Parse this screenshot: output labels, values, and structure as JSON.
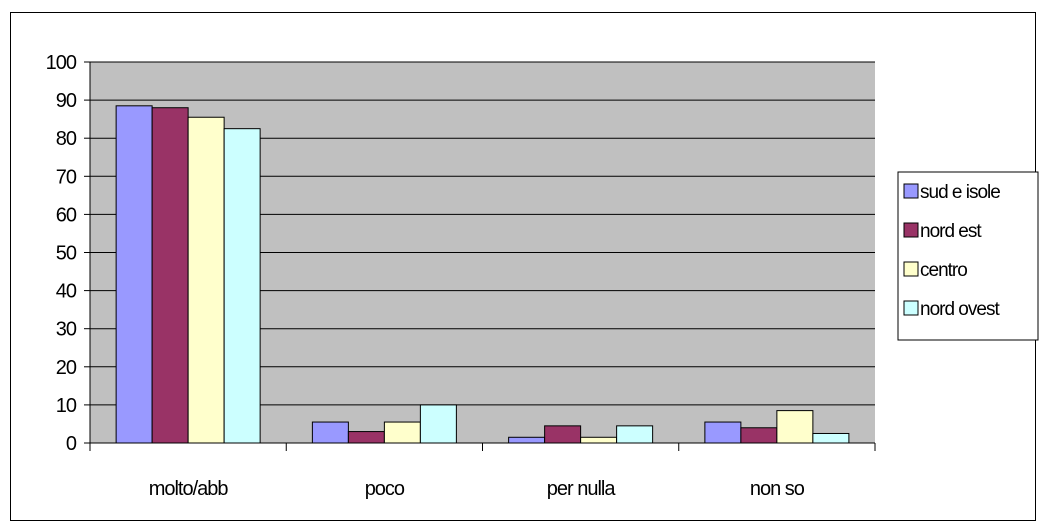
{
  "chart_data": {
    "type": "bar",
    "title": "",
    "xlabel": "",
    "ylabel": "",
    "ylim": [
      0,
      100
    ],
    "ytick_step": 10,
    "grid": true,
    "legend_placement": "right",
    "categories": [
      "molto/abb",
      "poco",
      "per nulla",
      "non so"
    ],
    "series": [
      {
        "name": "sud e isole",
        "color": "#9999ff",
        "values": [
          88.5,
          5.5,
          1.5,
          5.5
        ]
      },
      {
        "name": "nord est",
        "color": "#993366",
        "values": [
          88,
          3,
          4.5,
          4
        ]
      },
      {
        "name": "centro",
        "color": "#ffffcc",
        "values": [
          85.5,
          5.5,
          1.5,
          8.5
        ]
      },
      {
        "name": "nord ovest",
        "color": "#ccffff",
        "values": [
          82.5,
          10,
          4.5,
          2.5
        ]
      }
    ],
    "plot_background": "#c0c0c0"
  }
}
